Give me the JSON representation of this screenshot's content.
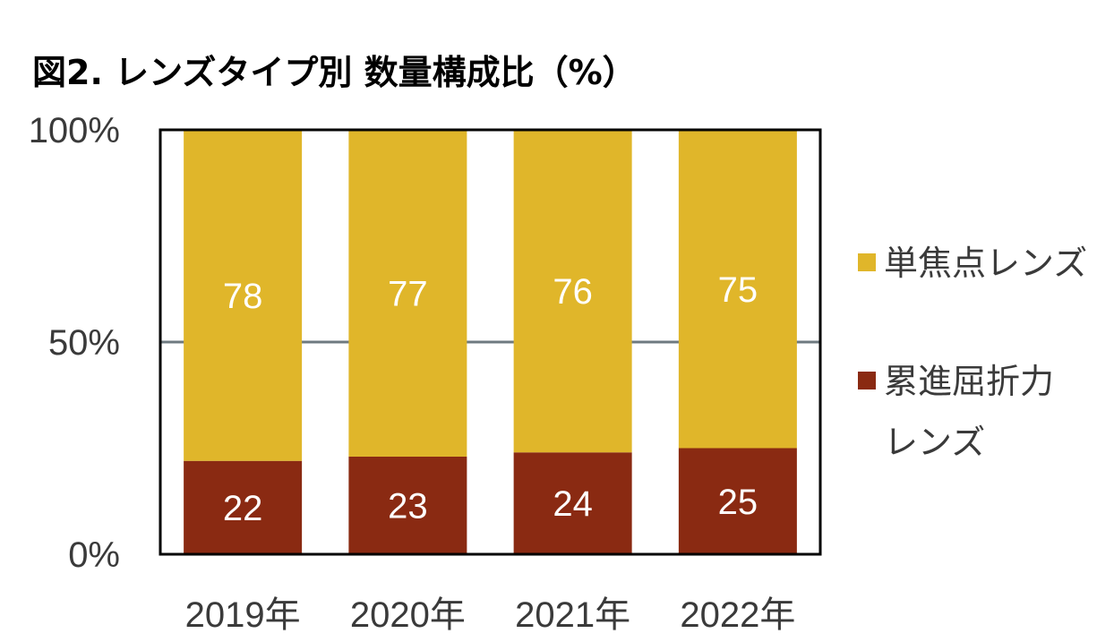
{
  "chart_data": {
    "type": "bar",
    "stacked": true,
    "title": "図2. レンズタイプ別 数量構成比（%）",
    "categories": [
      "2019年",
      "2020年",
      "2021年",
      "2022年"
    ],
    "series": [
      {
        "name": "累進屈折力レンズ",
        "values": [
          22,
          23,
          24,
          25
        ],
        "color": "#8a2a12"
      },
      {
        "name": "単焦点レンズ",
        "values": [
          78,
          77,
          76,
          75
        ],
        "color": "#e0b62a"
      }
    ],
    "ylim": [
      0,
      100
    ],
    "yticks": [
      "0%",
      "50%",
      "100%"
    ],
    "gridlines": [
      50
    ],
    "grid_color": "#6e7a80",
    "legend_position": "right",
    "legend": [
      {
        "lines": [
          "単焦点レンズ"
        ],
        "color": "#e0b62a"
      },
      {
        "lines": [
          "累進屈折力",
          "レンズ"
        ],
        "color": "#8a2a12"
      }
    ]
  }
}
